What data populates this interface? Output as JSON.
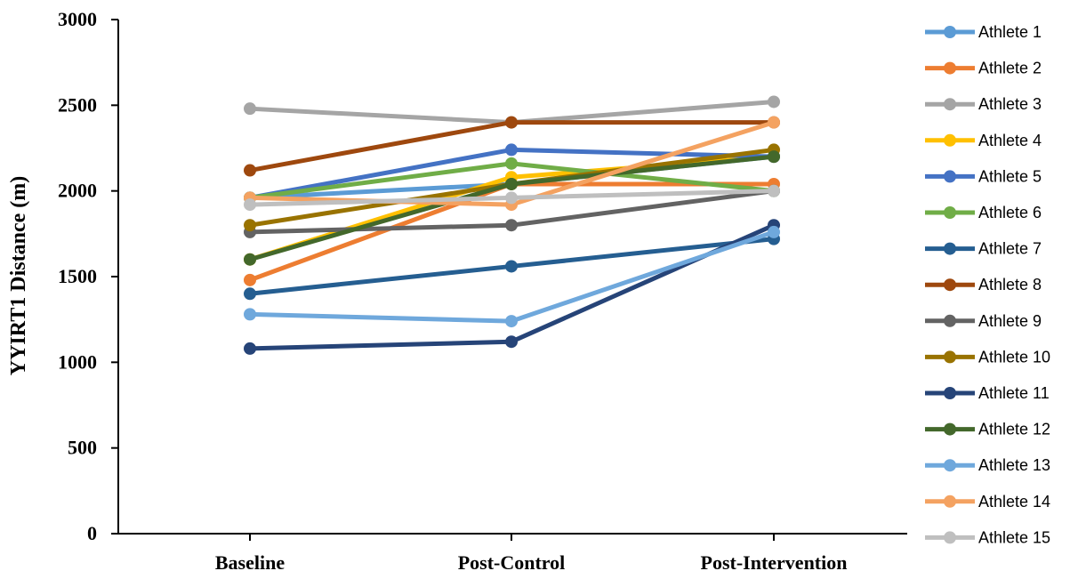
{
  "chart_data": {
    "type": "line",
    "title": "",
    "xlabel": "",
    "ylabel": "YYIRT1 Distance (m)",
    "categories": [
      "Baseline",
      "Post-Control",
      "Post-Intervention"
    ],
    "ylim": [
      0,
      3000
    ],
    "yticks": [
      0,
      500,
      1000,
      1500,
      2000,
      2500,
      3000
    ],
    "grid": false,
    "legend_position": "right",
    "series": [
      {
        "name": "Athlete 1",
        "color": "#5B9BD5",
        "values": [
          1960,
          2040,
          2200
        ]
      },
      {
        "name": "Athlete 2",
        "color": "#ED7D31",
        "values": [
          1480,
          2040,
          2040
        ]
      },
      {
        "name": "Athlete 3",
        "color": "#A5A5A5",
        "values": [
          2480,
          2400,
          2520
        ]
      },
      {
        "name": "Athlete 4",
        "color": "#FFC000",
        "values": [
          1600,
          2080,
          2200
        ]
      },
      {
        "name": "Athlete 5",
        "color": "#4472C4",
        "values": [
          1960,
          2240,
          2200
        ]
      },
      {
        "name": "Athlete 6",
        "color": "#70AD47",
        "values": [
          1960,
          2160,
          2000
        ]
      },
      {
        "name": "Athlete 7",
        "color": "#255E91",
        "values": [
          1400,
          1560,
          1720
        ]
      },
      {
        "name": "Athlete 8",
        "color": "#9E480E",
        "values": [
          2120,
          2400,
          2400
        ]
      },
      {
        "name": "Athlete 9",
        "color": "#636363",
        "values": [
          1760,
          1800,
          2000
        ]
      },
      {
        "name": "Athlete 10",
        "color": "#997300",
        "values": [
          1800,
          2040,
          2240
        ]
      },
      {
        "name": "Athlete 11",
        "color": "#264478",
        "values": [
          1080,
          1120,
          1800
        ]
      },
      {
        "name": "Athlete 12",
        "color": "#43682B",
        "values": [
          1600,
          2040,
          2200
        ]
      },
      {
        "name": "Athlete 13",
        "color": "#6FA8DC",
        "values": [
          1280,
          1240,
          1760
        ]
      },
      {
        "name": "Athlete 14",
        "color": "#F4A261",
        "values": [
          1960,
          1920,
          2400
        ]
      },
      {
        "name": "Athlete 15",
        "color": "#BFBFBF",
        "values": [
          1920,
          1960,
          2000
        ]
      }
    ]
  }
}
